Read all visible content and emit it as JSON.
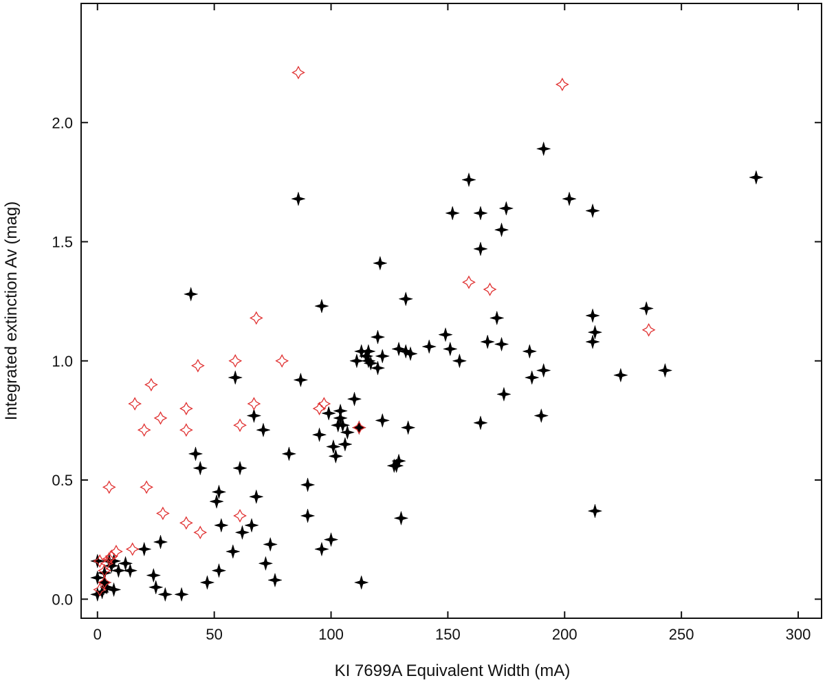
{
  "chart_data": {
    "type": "scatter",
    "title": "",
    "xlabel": "KI 7699A Equivalent Width (mA)",
    "ylabel": "Integrated extinction Av (mag)",
    "xlim": [
      -7,
      310
    ],
    "ylim": [
      -0.08,
      2.5
    ],
    "xticks": [
      0,
      50,
      100,
      150,
      200,
      250,
      300
    ],
    "xtick_labels": [
      "0",
      "50",
      "100",
      "150",
      "200",
      "250",
      "300"
    ],
    "yticks": [
      0.0,
      0.5,
      1.0,
      1.5,
      2.0
    ],
    "ytick_labels": [
      "0.0",
      "0.5",
      "1.0",
      "1.5",
      "2.0"
    ],
    "grid": false,
    "legend": "none",
    "series": [
      {
        "marker": "filled-four-point-star",
        "color": "#000000",
        "points": [
          [
            0,
            0.02
          ],
          [
            0,
            0.09
          ],
          [
            0,
            0.16
          ],
          [
            2,
            0.03
          ],
          [
            3,
            0.07
          ],
          [
            3,
            0.11
          ],
          [
            4,
            0.05
          ],
          [
            5,
            0.16
          ],
          [
            6,
            0.14
          ],
          [
            7,
            0.04
          ],
          [
            7,
            0.16
          ],
          [
            9,
            0.12
          ],
          [
            12,
            0.15
          ],
          [
            14,
            0.12
          ],
          [
            20,
            0.21
          ],
          [
            24,
            0.1
          ],
          [
            25,
            0.05
          ],
          [
            27,
            0.24
          ],
          [
            29,
            0.02
          ],
          [
            36,
            0.02
          ],
          [
            40,
            1.28
          ],
          [
            42,
            0.61
          ],
          [
            44,
            0.55
          ],
          [
            47,
            0.07
          ],
          [
            51,
            0.41
          ],
          [
            52,
            0.45
          ],
          [
            52,
            0.12
          ],
          [
            53,
            0.31
          ],
          [
            58,
            0.2
          ],
          [
            59,
            0.93
          ],
          [
            61,
            0.55
          ],
          [
            62,
            0.28
          ],
          [
            66,
            0.31
          ],
          [
            67,
            0.77
          ],
          [
            68,
            0.43
          ],
          [
            71,
            0.71
          ],
          [
            72,
            0.15
          ],
          [
            74,
            0.23
          ],
          [
            76,
            0.08
          ],
          [
            82,
            0.61
          ],
          [
            86,
            1.68
          ],
          [
            87,
            0.92
          ],
          [
            90,
            0.48
          ],
          [
            90,
            0.35
          ],
          [
            95,
            0.69
          ],
          [
            96,
            1.23
          ],
          [
            96,
            0.21
          ],
          [
            99,
            0.78
          ],
          [
            100,
            0.25
          ],
          [
            101,
            0.64
          ],
          [
            102,
            0.6
          ],
          [
            103,
            0.73
          ],
          [
            104,
            0.76
          ],
          [
            104,
            0.79
          ],
          [
            105,
            0.73
          ],
          [
            106,
            0.65
          ],
          [
            107,
            0.7
          ],
          [
            110,
            0.84
          ],
          [
            111,
            1.0
          ],
          [
            112,
            0.72
          ],
          [
            113,
            1.04
          ],
          [
            113,
            0.07
          ],
          [
            115,
            1.02
          ],
          [
            116,
            1.0
          ],
          [
            116,
            1.04
          ],
          [
            117,
            0.99
          ],
          [
            120,
            1.1
          ],
          [
            120,
            0.97
          ],
          [
            121,
            1.41
          ],
          [
            122,
            1.02
          ],
          [
            122,
            0.75
          ],
          [
            127,
            0.56
          ],
          [
            128,
            0.56
          ],
          [
            129,
            1.05
          ],
          [
            129,
            0.58
          ],
          [
            130,
            0.34
          ],
          [
            132,
            1.26
          ],
          [
            132,
            1.04
          ],
          [
            133,
            0.72
          ],
          [
            134,
            1.03
          ],
          [
            142,
            1.06
          ],
          [
            149,
            1.11
          ],
          [
            151,
            1.05
          ],
          [
            152,
            1.62
          ],
          [
            155,
            1.0
          ],
          [
            159,
            1.76
          ],
          [
            164,
            1.62
          ],
          [
            164,
            1.47
          ],
          [
            164,
            0.74
          ],
          [
            167,
            1.08
          ],
          [
            171,
            1.18
          ],
          [
            173,
            1.55
          ],
          [
            173,
            1.07
          ],
          [
            174,
            0.86
          ],
          [
            175,
            1.64
          ],
          [
            185,
            1.04
          ],
          [
            186,
            0.93
          ],
          [
            190,
            0.77
          ],
          [
            191,
            1.89
          ],
          [
            191,
            0.96
          ],
          [
            202,
            1.68
          ],
          [
            212,
            1.63
          ],
          [
            212,
            1.19
          ],
          [
            212,
            1.08
          ],
          [
            213,
            1.12
          ],
          [
            213,
            0.37
          ],
          [
            224,
            0.94
          ],
          [
            235,
            1.22
          ],
          [
            243,
            0.96
          ],
          [
            282,
            1.77
          ]
        ]
      },
      {
        "marker": "open-four-point-star",
        "color": "#e03030",
        "points": [
          [
            1,
            0.04
          ],
          [
            1,
            0.16
          ],
          [
            3,
            0.07
          ],
          [
            3,
            0.12
          ],
          [
            4,
            0.15
          ],
          [
            5,
            0.47
          ],
          [
            5,
            0.17
          ],
          [
            6,
            0.18
          ],
          [
            8,
            0.2
          ],
          [
            15,
            0.21
          ],
          [
            16,
            0.82
          ],
          [
            20,
            0.71
          ],
          [
            21,
            0.47
          ],
          [
            23,
            0.9
          ],
          [
            27,
            0.76
          ],
          [
            28,
            0.36
          ],
          [
            38,
            0.8
          ],
          [
            38,
            0.71
          ],
          [
            38,
            0.32
          ],
          [
            43,
            0.98
          ],
          [
            44,
            0.28
          ],
          [
            59,
            1.0
          ],
          [
            61,
            0.73
          ],
          [
            61,
            0.35
          ],
          [
            67,
            0.82
          ],
          [
            68,
            1.18
          ],
          [
            79,
            1.0
          ],
          [
            86,
            2.21
          ],
          [
            95,
            0.8
          ],
          [
            97,
            0.82
          ],
          [
            112,
            0.72
          ],
          [
            159,
            1.33
          ],
          [
            168,
            1.3
          ],
          [
            199,
            2.16
          ],
          [
            236,
            1.13
          ]
        ]
      }
    ]
  }
}
